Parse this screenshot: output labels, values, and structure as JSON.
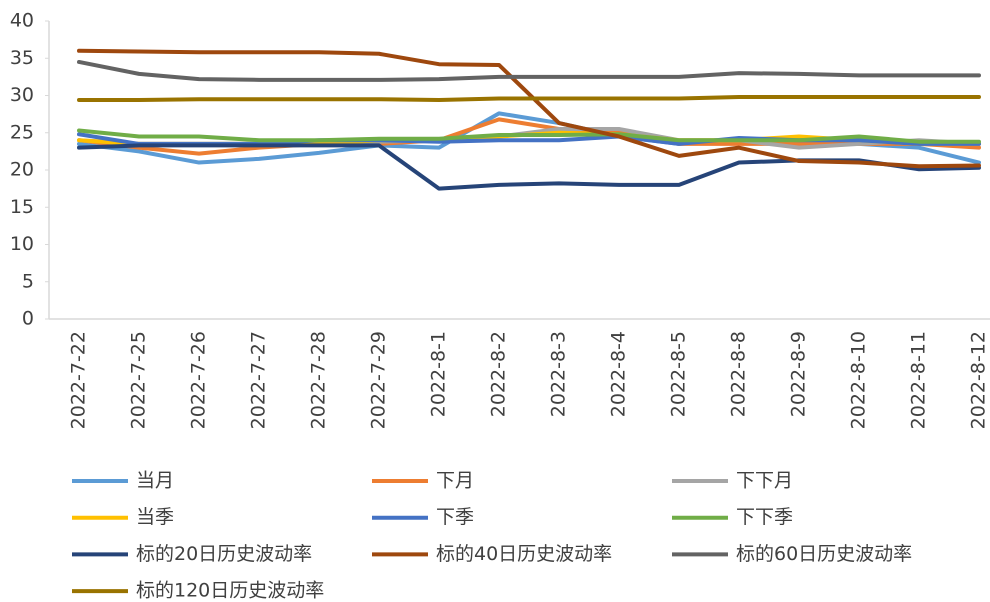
{
  "chart_data": {
    "type": "line",
    "categories": [
      "2022-7-22",
      "2022-7-25",
      "2022-7-26",
      "2022-7-27",
      "2022-7-28",
      "2022-7-29",
      "2022-8-1",
      "2022-8-2",
      "2022-8-3",
      "2022-8-4",
      "2022-8-5",
      "2022-8-8",
      "2022-8-9",
      "2022-8-10",
      "2022-8-11",
      "2022-8-12"
    ],
    "ylim": [
      0,
      40
    ],
    "yticks": [
      0,
      5,
      10,
      15,
      20,
      25,
      30,
      35,
      40
    ],
    "series": [
      {
        "name": "当月",
        "color": "#5b9bd5",
        "values": [
          23.5,
          22.5,
          21,
          21.5,
          22.3,
          23.3,
          23,
          27.6,
          26.3,
          24.5,
          23.5,
          24,
          23.5,
          23.5,
          23,
          21
        ]
      },
      {
        "name": "下月",
        "color": "#ed7d31",
        "values": [
          24,
          23,
          22.2,
          23,
          23.5,
          23.5,
          24,
          26.8,
          25.5,
          25,
          23.5,
          23.5,
          23.5,
          23.5,
          23.5,
          23
        ]
      },
      {
        "name": "下下月",
        "color": "#a5a5a5",
        "values": [
          24,
          23.5,
          23.5,
          23.5,
          23.5,
          23.8,
          24,
          24.5,
          25.5,
          25.5,
          24,
          24,
          23,
          23.5,
          24,
          23.5
        ]
      },
      {
        "name": "当季",
        "color": "#ffc000",
        "values": [
          24,
          23.5,
          23.5,
          23.5,
          23.5,
          24,
          24,
          24.5,
          25,
          24.8,
          24,
          24,
          24.5,
          24,
          23.5,
          23.5
        ]
      },
      {
        "name": "下季",
        "color": "#4472c4",
        "values": [
          24.8,
          23.5,
          23.5,
          23.5,
          24,
          24,
          23.8,
          24,
          24,
          24.5,
          23.5,
          24.3,
          24,
          24,
          23.5,
          23.5
        ]
      },
      {
        "name": "下下季",
        "color": "#70ad47",
        "values": [
          25.3,
          24.5,
          24.5,
          24,
          24,
          24.2,
          24.2,
          24.7,
          24.7,
          24.8,
          24,
          24,
          24,
          24.5,
          23.8,
          23.8
        ]
      },
      {
        "name": "标的20日历史波动率",
        "color": "#264478",
        "values": [
          23,
          23.3,
          23.3,
          23.3,
          23.3,
          23.3,
          17.5,
          18,
          18.2,
          18,
          18,
          21,
          21.3,
          21.3,
          20.1,
          20.3
        ]
      },
      {
        "name": "标的40日历史波动率",
        "color": "#9e480e",
        "values": [
          36,
          35.9,
          35.8,
          35.8,
          35.8,
          35.6,
          34.2,
          34.1,
          26.3,
          24.5,
          21.9,
          23,
          21.2,
          21,
          20.5,
          20.6
        ]
      },
      {
        "name": "标的60日历史波动率",
        "color": "#636363",
        "values": [
          34.5,
          32.9,
          32.2,
          32.1,
          32.1,
          32.1,
          32.2,
          32.5,
          32.5,
          32.5,
          32.5,
          33,
          32.9,
          32.7,
          32.7,
          32.7
        ]
      },
      {
        "name": "标的120日历史波动率",
        "color": "#997300",
        "values": [
          29.4,
          29.4,
          29.5,
          29.5,
          29.5,
          29.5,
          29.4,
          29.6,
          29.6,
          29.6,
          29.6,
          29.8,
          29.8,
          29.8,
          29.8,
          29.8
        ]
      }
    ]
  }
}
